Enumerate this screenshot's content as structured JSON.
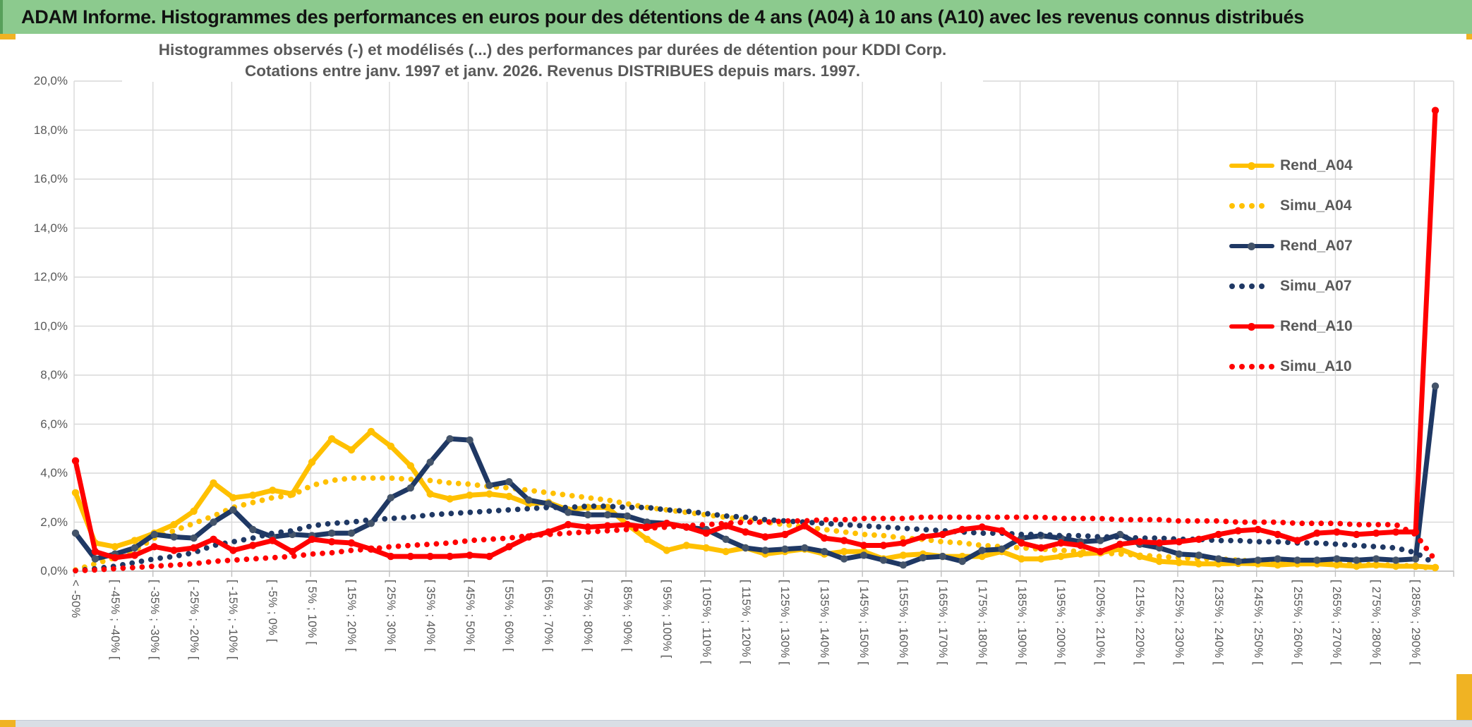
{
  "header": {
    "title": "ADAM Informe. Histogrammes des performances en euros pour des détentions de 4 ans (A04) à 10 ans (A10) avec les revenus connus distribués"
  },
  "chart_data": {
    "type": "line",
    "title": "Histogrammes observés (-) et modélisés (...) des performances par durées de détention pour KDDI Corp.",
    "subtitle": "Cotations entre janv. 1997 et janv. 2026. Revenus DISTRIBUES depuis mars. 1997.",
    "ylim": [
      0,
      20
    ],
    "grid": true,
    "legend_position": "inside-top-right",
    "y_tick_labels": [
      "20,0%",
      "18,0%",
      "16,0%",
      "14,0%",
      "12,0%",
      "10,0%",
      "8,0%",
      "6,0%",
      "4,0%",
      "2,0%",
      "0,0%"
    ],
    "x_axis_labels": [
      "< -50%",
      "[ -45% ; -40% [",
      "[ -35% ; -30% [",
      "[ -25% ; -20% [",
      "[ -15% ; -10% [",
      "[ -5% ; 0% [",
      "[ 5% ; 10% [",
      "[ 15% ; 20% [",
      "[ 25% ; 30% [",
      "[ 35% ; 40% [",
      "[ 45% ; 50% [",
      "[ 55% ; 60% [",
      "[ 65% ; 70% [",
      "[ 75% ; 80% [",
      "[ 85% ; 90% [",
      "[ 95% ; 100% [",
      "[ 105% ; 110% [",
      "[ 115% ; 120% [",
      "[ 125% ; 130% [",
      "[ 135% ; 140% [",
      "[ 145% ; 150% [",
      "[ 155% ; 160% [",
      "[ 165% ; 170% [",
      "[ 175% ; 180% [",
      "[ 185% ; 190% [",
      "[ 195% ; 200% [",
      "[ 205% ; 210% [",
      "[ 215% ; 220% [",
      "[ 225% ; 230% [",
      "[ 235% ; 240% [",
      "[ 245% ; 250% [",
      "[ 255% ; 260% [",
      "[ 265% ; 270% [",
      "[ 275% ; 280% [",
      "[ 285% ; 290% ["
    ],
    "points_per_label": 2,
    "colors": {
      "gold": "#FFC000",
      "navy": "#1F3864",
      "navy_marker": "#44546A",
      "red": "#FF0000",
      "grid": "#D9D9D9",
      "axis": "#BFBFBF",
      "text": "#595959",
      "header_bg": "#8CCA8E",
      "accent_gold": "#F0B323",
      "footer_band": "#D9DEE5"
    },
    "series": [
      {
        "name": "Rend_A04",
        "style": "solid",
        "color": "#FFC000",
        "marker_color": "#FFC000",
        "legend_dots": 0,
        "values": [
          3.2,
          1.15,
          1.0,
          1.25,
          1.55,
          1.9,
          2.45,
          3.6,
          3.0,
          3.1,
          3.3,
          3.15,
          4.45,
          5.4,
          4.95,
          5.7,
          5.1,
          4.3,
          3.15,
          2.95,
          3.1,
          3.15,
          3.05,
          2.75,
          2.8,
          2.5,
          2.6,
          2.6,
          1.9,
          1.3,
          0.85,
          1.05,
          0.95,
          0.8,
          0.95,
          0.7,
          0.8,
          0.9,
          0.7,
          0.8,
          0.8,
          0.5,
          0.65,
          0.7,
          0.6,
          0.6,
          0.6,
          0.8,
          0.5,
          0.5,
          0.6,
          0.7,
          0.75,
          0.9,
          0.6,
          0.4,
          0.35,
          0.3,
          0.3,
          0.32,
          0.3,
          0.25,
          0.3,
          0.3,
          0.25,
          0.2,
          0.25,
          0.2,
          0.2,
          0.15
        ]
      },
      {
        "name": "Simu_A04",
        "style": "dotted",
        "color": "#FFC000",
        "legend_dots": 4,
        "values": [
          0.05,
          0.3,
          0.55,
          0.85,
          1.35,
          1.65,
          1.95,
          2.25,
          2.6,
          2.8,
          3.0,
          3.1,
          3.5,
          3.7,
          3.8,
          3.8,
          3.8,
          3.75,
          3.7,
          3.6,
          3.55,
          3.45,
          3.4,
          3.3,
          3.2,
          3.1,
          3.0,
          2.9,
          2.75,
          2.6,
          2.5,
          2.4,
          2.3,
          2.2,
          2.1,
          2.0,
          1.9,
          1.8,
          1.7,
          1.6,
          1.5,
          1.45,
          1.35,
          1.3,
          1.2,
          1.15,
          1.05,
          1.0,
          0.95,
          0.9,
          0.85,
          0.8,
          0.75,
          0.7,
          0.65,
          0.6,
          0.55,
          0.5,
          0.5,
          0.45,
          0.4,
          0.4,
          0.35,
          0.35,
          0.3,
          0.3,
          0.25,
          0.25,
          0.2,
          0.1
        ]
      },
      {
        "name": "Rend_A07",
        "style": "solid",
        "color": "#1F3864",
        "marker_color": "#44546A",
        "legend_dots": 0,
        "values": [
          1.55,
          0.5,
          0.7,
          0.95,
          1.5,
          1.4,
          1.35,
          2.0,
          2.5,
          1.7,
          1.4,
          1.5,
          1.45,
          1.55,
          1.55,
          1.95,
          3.0,
          3.4,
          4.45,
          5.4,
          5.35,
          3.5,
          3.65,
          2.9,
          2.75,
          2.4,
          2.3,
          2.3,
          2.25,
          2.0,
          1.95,
          1.8,
          1.7,
          1.3,
          0.95,
          0.85,
          0.9,
          0.95,
          0.8,
          0.5,
          0.65,
          0.45,
          0.25,
          0.55,
          0.6,
          0.4,
          0.85,
          0.9,
          1.35,
          1.45,
          1.35,
          1.2,
          1.25,
          1.5,
          1.1,
          0.95,
          0.7,
          0.65,
          0.5,
          0.4,
          0.45,
          0.5,
          0.45,
          0.45,
          0.5,
          0.45,
          0.5,
          0.45,
          0.5,
          7.55
        ]
      },
      {
        "name": "Simu_A07",
        "style": "dotted",
        "color": "#1F3864",
        "legend_dots": 4,
        "values": [
          0.02,
          0.1,
          0.2,
          0.35,
          0.5,
          0.6,
          0.75,
          1.05,
          1.2,
          1.35,
          1.55,
          1.65,
          1.85,
          1.95,
          2.0,
          2.1,
          2.15,
          2.2,
          2.3,
          2.35,
          2.4,
          2.45,
          2.5,
          2.55,
          2.6,
          2.6,
          2.65,
          2.65,
          2.6,
          2.6,
          2.5,
          2.45,
          2.35,
          2.25,
          2.2,
          2.1,
          2.05,
          2.0,
          1.95,
          1.9,
          1.85,
          1.8,
          1.75,
          1.7,
          1.65,
          1.6,
          1.55,
          1.55,
          1.5,
          1.5,
          1.45,
          1.45,
          1.4,
          1.4,
          1.35,
          1.35,
          1.3,
          1.3,
          1.25,
          1.25,
          1.2,
          1.2,
          1.15,
          1.15,
          1.1,
          1.05,
          1.0,
          0.95,
          0.75,
          0.3
        ]
      },
      {
        "name": "Rend_A10",
        "style": "solid",
        "color": "#FF0000",
        "marker_color": "#FF0000",
        "legend_dots": 0,
        "values": [
          4.5,
          0.8,
          0.55,
          0.65,
          1.0,
          0.85,
          0.95,
          1.3,
          0.85,
          1.05,
          1.25,
          0.8,
          1.3,
          1.2,
          1.15,
          0.9,
          0.6,
          0.6,
          0.6,
          0.6,
          0.65,
          0.6,
          1.0,
          1.4,
          1.6,
          1.9,
          1.8,
          1.85,
          1.9,
          1.8,
          1.95,
          1.8,
          1.55,
          1.85,
          1.6,
          1.4,
          1.5,
          1.85,
          1.35,
          1.25,
          1.05,
          1.05,
          1.15,
          1.4,
          1.5,
          1.7,
          1.8,
          1.65,
          1.15,
          0.95,
          1.15,
          1.05,
          0.8,
          1.1,
          1.2,
          1.15,
          1.2,
          1.3,
          1.5,
          1.65,
          1.7,
          1.5,
          1.25,
          1.55,
          1.6,
          1.5,
          1.55,
          1.6,
          1.6,
          18.8
        ]
      },
      {
        "name": "Simu_A10",
        "style": "dotted",
        "color": "#FF0000",
        "legend_dots": 5,
        "values": [
          0.02,
          0.05,
          0.1,
          0.15,
          0.2,
          0.25,
          0.3,
          0.4,
          0.45,
          0.5,
          0.55,
          0.6,
          0.7,
          0.75,
          0.85,
          0.9,
          1.0,
          1.05,
          1.1,
          1.15,
          1.25,
          1.3,
          1.35,
          1.45,
          1.5,
          1.55,
          1.6,
          1.65,
          1.7,
          1.75,
          1.8,
          1.85,
          1.9,
          1.95,
          2.0,
          2.0,
          2.05,
          2.05,
          2.1,
          2.1,
          2.15,
          2.15,
          2.15,
          2.2,
          2.2,
          2.2,
          2.2,
          2.2,
          2.2,
          2.2,
          2.15,
          2.15,
          2.15,
          2.1,
          2.1,
          2.1,
          2.05,
          2.05,
          2.05,
          2.0,
          2.0,
          2.0,
          1.95,
          1.95,
          1.95,
          1.9,
          1.9,
          1.9,
          1.5,
          0.45
        ]
      }
    ]
  }
}
